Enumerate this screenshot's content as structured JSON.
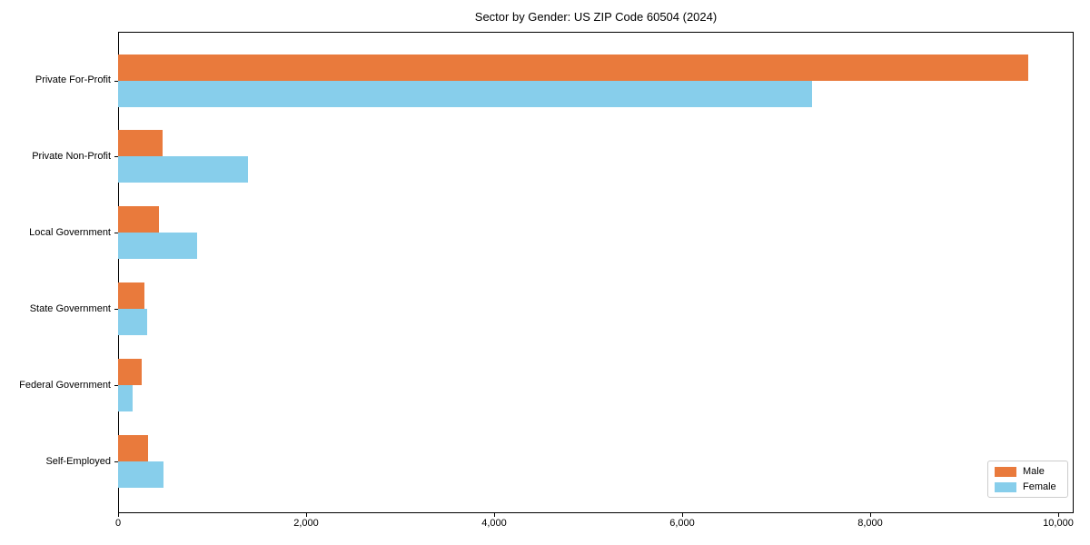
{
  "title": "Sector by Gender: US ZIP Code 60504 (2024)",
  "chart_data": {
    "type": "bar",
    "orientation": "horizontal",
    "title": "Sector by Gender: US ZIP Code 60504 (2024)",
    "categories": [
      "Private For-Profit",
      "Private Non-Profit",
      "Local Government",
      "State Government",
      "Federal Government",
      "Self-Employed"
    ],
    "series": [
      {
        "name": "Male",
        "color": "#e97a3c",
        "values": [
          9680,
          470,
          435,
          280,
          250,
          320
        ]
      },
      {
        "name": "Female",
        "color": "#87ceeb",
        "values": [
          7380,
          1380,
          845,
          310,
          150,
          480
        ]
      }
    ],
    "x_ticks": [
      0,
      2000,
      4000,
      6000,
      8000,
      10000
    ],
    "x_tick_labels": [
      "0",
      "2,000",
      "4,000",
      "6,000",
      "8,000",
      "10,000"
    ],
    "xlim": [
      0,
      10160
    ],
    "xlabel": "",
    "ylabel": "",
    "grid": false,
    "legend_position": "lower right",
    "legend_entries": [
      "Male",
      "Female"
    ]
  }
}
